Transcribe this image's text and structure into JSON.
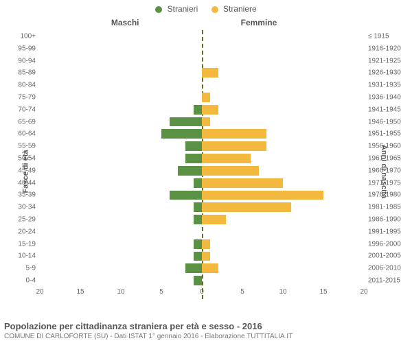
{
  "legend": {
    "male": {
      "label": "Stranieri",
      "color": "#5a9144"
    },
    "female": {
      "label": "Straniere",
      "color": "#f3b83e"
    }
  },
  "headers": {
    "male": "Maschi",
    "female": "Femmine"
  },
  "yAxisLeftTitle": "Fasce di età",
  "yAxisRightTitle": "Anni di nascita",
  "title": "Popolazione per cittadinanza straniera per età e sesso - 2016",
  "subtitle": "COMUNE DI CARLOFORTE (SU) - Dati ISTAT 1° gennaio 2016 - Elaborazione TUTTITALIA.IT",
  "colors": {
    "maleBar": "#5a9144",
    "femaleBar": "#f3b83e",
    "background": "#ffffff",
    "gridline": "#e0e0e0",
    "text": "#555555"
  },
  "chart": {
    "type": "population-pyramid",
    "xMax": 20,
    "xTicks": [
      20,
      15,
      10,
      5,
      0,
      5,
      10,
      15,
      20
    ],
    "rows": [
      {
        "age": "100+",
        "birth": "≤ 1915",
        "m": 0,
        "f": 0
      },
      {
        "age": "95-99",
        "birth": "1916-1920",
        "m": 0,
        "f": 0
      },
      {
        "age": "90-94",
        "birth": "1921-1925",
        "m": 0,
        "f": 0
      },
      {
        "age": "85-89",
        "birth": "1926-1930",
        "m": 0,
        "f": 2
      },
      {
        "age": "80-84",
        "birth": "1931-1935",
        "m": 0,
        "f": 0
      },
      {
        "age": "75-79",
        "birth": "1936-1940",
        "m": 0,
        "f": 1
      },
      {
        "age": "70-74",
        "birth": "1941-1945",
        "m": 1,
        "f": 2
      },
      {
        "age": "65-69",
        "birth": "1946-1950",
        "m": 4,
        "f": 1
      },
      {
        "age": "60-64",
        "birth": "1951-1955",
        "m": 5,
        "f": 8
      },
      {
        "age": "55-59",
        "birth": "1956-1960",
        "m": 2,
        "f": 8
      },
      {
        "age": "50-54",
        "birth": "1961-1965",
        "m": 2,
        "f": 6
      },
      {
        "age": "45-49",
        "birth": "1966-1970",
        "m": 3,
        "f": 7
      },
      {
        "age": "40-44",
        "birth": "1971-1975",
        "m": 1,
        "f": 10
      },
      {
        "age": "35-39",
        "birth": "1976-1980",
        "m": 4,
        "f": 15
      },
      {
        "age": "30-34",
        "birth": "1981-1985",
        "m": 1,
        "f": 11
      },
      {
        "age": "25-29",
        "birth": "1986-1990",
        "m": 1,
        "f": 3
      },
      {
        "age": "20-24",
        "birth": "1991-1995",
        "m": 0,
        "f": 0
      },
      {
        "age": "15-19",
        "birth": "1996-2000",
        "m": 1,
        "f": 1
      },
      {
        "age": "10-14",
        "birth": "2001-2005",
        "m": 1,
        "f": 1
      },
      {
        "age": "5-9",
        "birth": "2006-2010",
        "m": 2,
        "f": 2
      },
      {
        "age": "0-4",
        "birth": "2011-2015",
        "m": 1,
        "f": 0
      }
    ]
  }
}
